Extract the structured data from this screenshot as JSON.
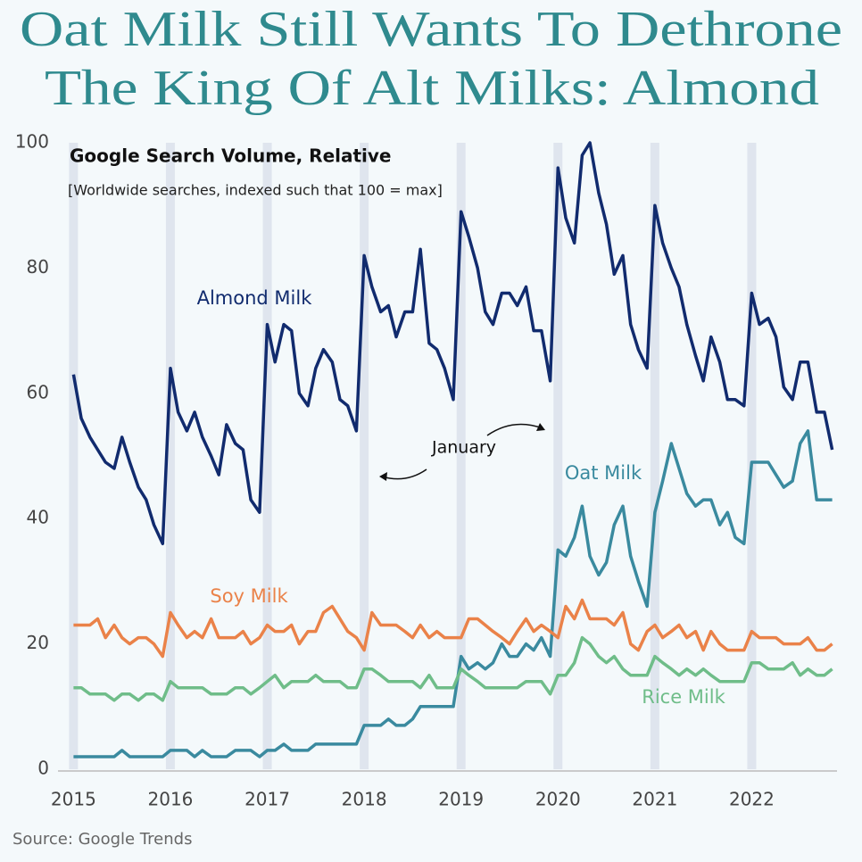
{
  "chart_data": {
    "type": "line",
    "title": [
      "Oat Milk Still Wants To Dethrone",
      "The King Of Alt Milks: Almond"
    ],
    "subtitle": "Google Search Volume, Relative",
    "note": "[Worldwide searches, indexed such that 100 = max]",
    "source": "Source: Google Trends",
    "annotations": [
      "January"
    ],
    "x": [
      2015,
      2015.08,
      2015.17,
      2015.25,
      2015.33,
      2015.42,
      2015.5,
      2015.58,
      2015.67,
      2015.75,
      2015.83,
      2015.92,
      2016,
      2016.08,
      2016.17,
      2016.25,
      2016.33,
      2016.42,
      2016.5,
      2016.58,
      2016.67,
      2016.75,
      2016.83,
      2016.92,
      2017,
      2017.08,
      2017.17,
      2017.25,
      2017.33,
      2017.42,
      2017.5,
      2017.58,
      2017.67,
      2017.75,
      2017.83,
      2017.92,
      2018,
      2018.08,
      2018.17,
      2018.25,
      2018.33,
      2018.42,
      2018.5,
      2018.58,
      2018.67,
      2018.75,
      2018.83,
      2018.92,
      2019,
      2019.08,
      2019.17,
      2019.25,
      2019.33,
      2019.42,
      2019.5,
      2019.58,
      2019.67,
      2019.75,
      2019.83,
      2019.92,
      2020,
      2020.08,
      2020.17,
      2020.25,
      2020.33,
      2020.42,
      2020.5,
      2020.58,
      2020.67,
      2020.75,
      2020.83,
      2020.92,
      2021,
      2021.08,
      2021.17,
      2021.25,
      2021.33,
      2021.42,
      2021.5,
      2021.58,
      2021.67,
      2021.75,
      2021.83,
      2021.92,
      2022,
      2022.08,
      2022.17,
      2022.25,
      2022.33,
      2022.42,
      2022.5,
      2022.58,
      2022.67,
      2022.75,
      2022.83
    ],
    "series": [
      {
        "name": "Almond Milk",
        "color": "#112b6e",
        "values": [
          63,
          56,
          53,
          51,
          49,
          48,
          53,
          49,
          45,
          43,
          39,
          36,
          64,
          57,
          54,
          57,
          53,
          50,
          47,
          55,
          52,
          51,
          43,
          41,
          71,
          65,
          71,
          70,
          60,
          58,
          64,
          67,
          65,
          59,
          58,
          54,
          82,
          77,
          73,
          74,
          69,
          73,
          73,
          83,
          68,
          67,
          64,
          59,
          89,
          85,
          80,
          73,
          71,
          76,
          76,
          74,
          77,
          70,
          70,
          62,
          96,
          88,
          84,
          98,
          100,
          92,
          87,
          79,
          82,
          71,
          67,
          64,
          90,
          84,
          80,
          77,
          71,
          66,
          62,
          69,
          65,
          59,
          59,
          58,
          76,
          71,
          72,
          69,
          61,
          59,
          65,
          65,
          57,
          57,
          51
        ]
      },
      {
        "name": "Oat Milk",
        "color": "#3a8a9f",
        "values": [
          2,
          2,
          2,
          2,
          2,
          2,
          3,
          2,
          2,
          2,
          2,
          2,
          3,
          3,
          3,
          2,
          3,
          2,
          2,
          2,
          3,
          3,
          3,
          2,
          3,
          3,
          4,
          3,
          3,
          3,
          4,
          4,
          4,
          4,
          4,
          4,
          7,
          7,
          7,
          8,
          7,
          7,
          8,
          10,
          10,
          10,
          10,
          10,
          18,
          16,
          17,
          16,
          17,
          20,
          18,
          18,
          20,
          19,
          21,
          18,
          35,
          34,
          37,
          42,
          34,
          31,
          33,
          39,
          42,
          34,
          30,
          26,
          41,
          46,
          52,
          48,
          44,
          42,
          43,
          43,
          39,
          41,
          37,
          36,
          49,
          49,
          49,
          47,
          45,
          46,
          52,
          54,
          43,
          43,
          43
        ]
      },
      {
        "name": "Soy Milk",
        "color": "#ea8249",
        "values": [
          23,
          23,
          23,
          24,
          21,
          23,
          21,
          20,
          21,
          21,
          20,
          18,
          25,
          23,
          21,
          22,
          21,
          24,
          21,
          21,
          21,
          22,
          20,
          21,
          23,
          22,
          22,
          23,
          20,
          22,
          22,
          25,
          26,
          24,
          22,
          21,
          19,
          25,
          23,
          23,
          23,
          22,
          21,
          23,
          21,
          22,
          21,
          21,
          21,
          24,
          24,
          23,
          22,
          21,
          20,
          22,
          24,
          22,
          23,
          22,
          21,
          26,
          24,
          27,
          24,
          24,
          24,
          23,
          25,
          20,
          19,
          22,
          23,
          21,
          22,
          23,
          21,
          22,
          19,
          22,
          20,
          19,
          19,
          19,
          22,
          21,
          21,
          21,
          20,
          20,
          20,
          21,
          19,
          19,
          20
        ]
      },
      {
        "name": "Rice Milk",
        "color": "#6fbd89",
        "values": [
          13,
          13,
          12,
          12,
          12,
          11,
          12,
          12,
          11,
          12,
          12,
          11,
          14,
          13,
          13,
          13,
          13,
          12,
          12,
          12,
          13,
          13,
          12,
          13,
          14,
          15,
          13,
          14,
          14,
          14,
          15,
          14,
          14,
          14,
          13,
          13,
          16,
          16,
          15,
          14,
          14,
          14,
          14,
          13,
          15,
          13,
          13,
          13,
          16,
          15,
          14,
          13,
          13,
          13,
          13,
          13,
          14,
          14,
          14,
          12,
          15,
          15,
          17,
          21,
          20,
          18,
          17,
          18,
          16,
          15,
          15,
          15,
          18,
          17,
          16,
          15,
          16,
          15,
          16,
          15,
          14,
          14,
          14,
          14,
          17,
          17,
          16,
          16,
          16,
          17,
          15,
          16,
          15,
          15,
          16
        ]
      }
    ],
    "xlim": [
      2014.84,
      2022.88
    ],
    "xticks": [
      2015,
      2016,
      2017,
      2018,
      2019,
      2020,
      2021,
      2022
    ],
    "ylim": [
      0,
      100
    ],
    "yticks": [
      0,
      20,
      40,
      60,
      80,
      100
    ],
    "grid": false
  }
}
